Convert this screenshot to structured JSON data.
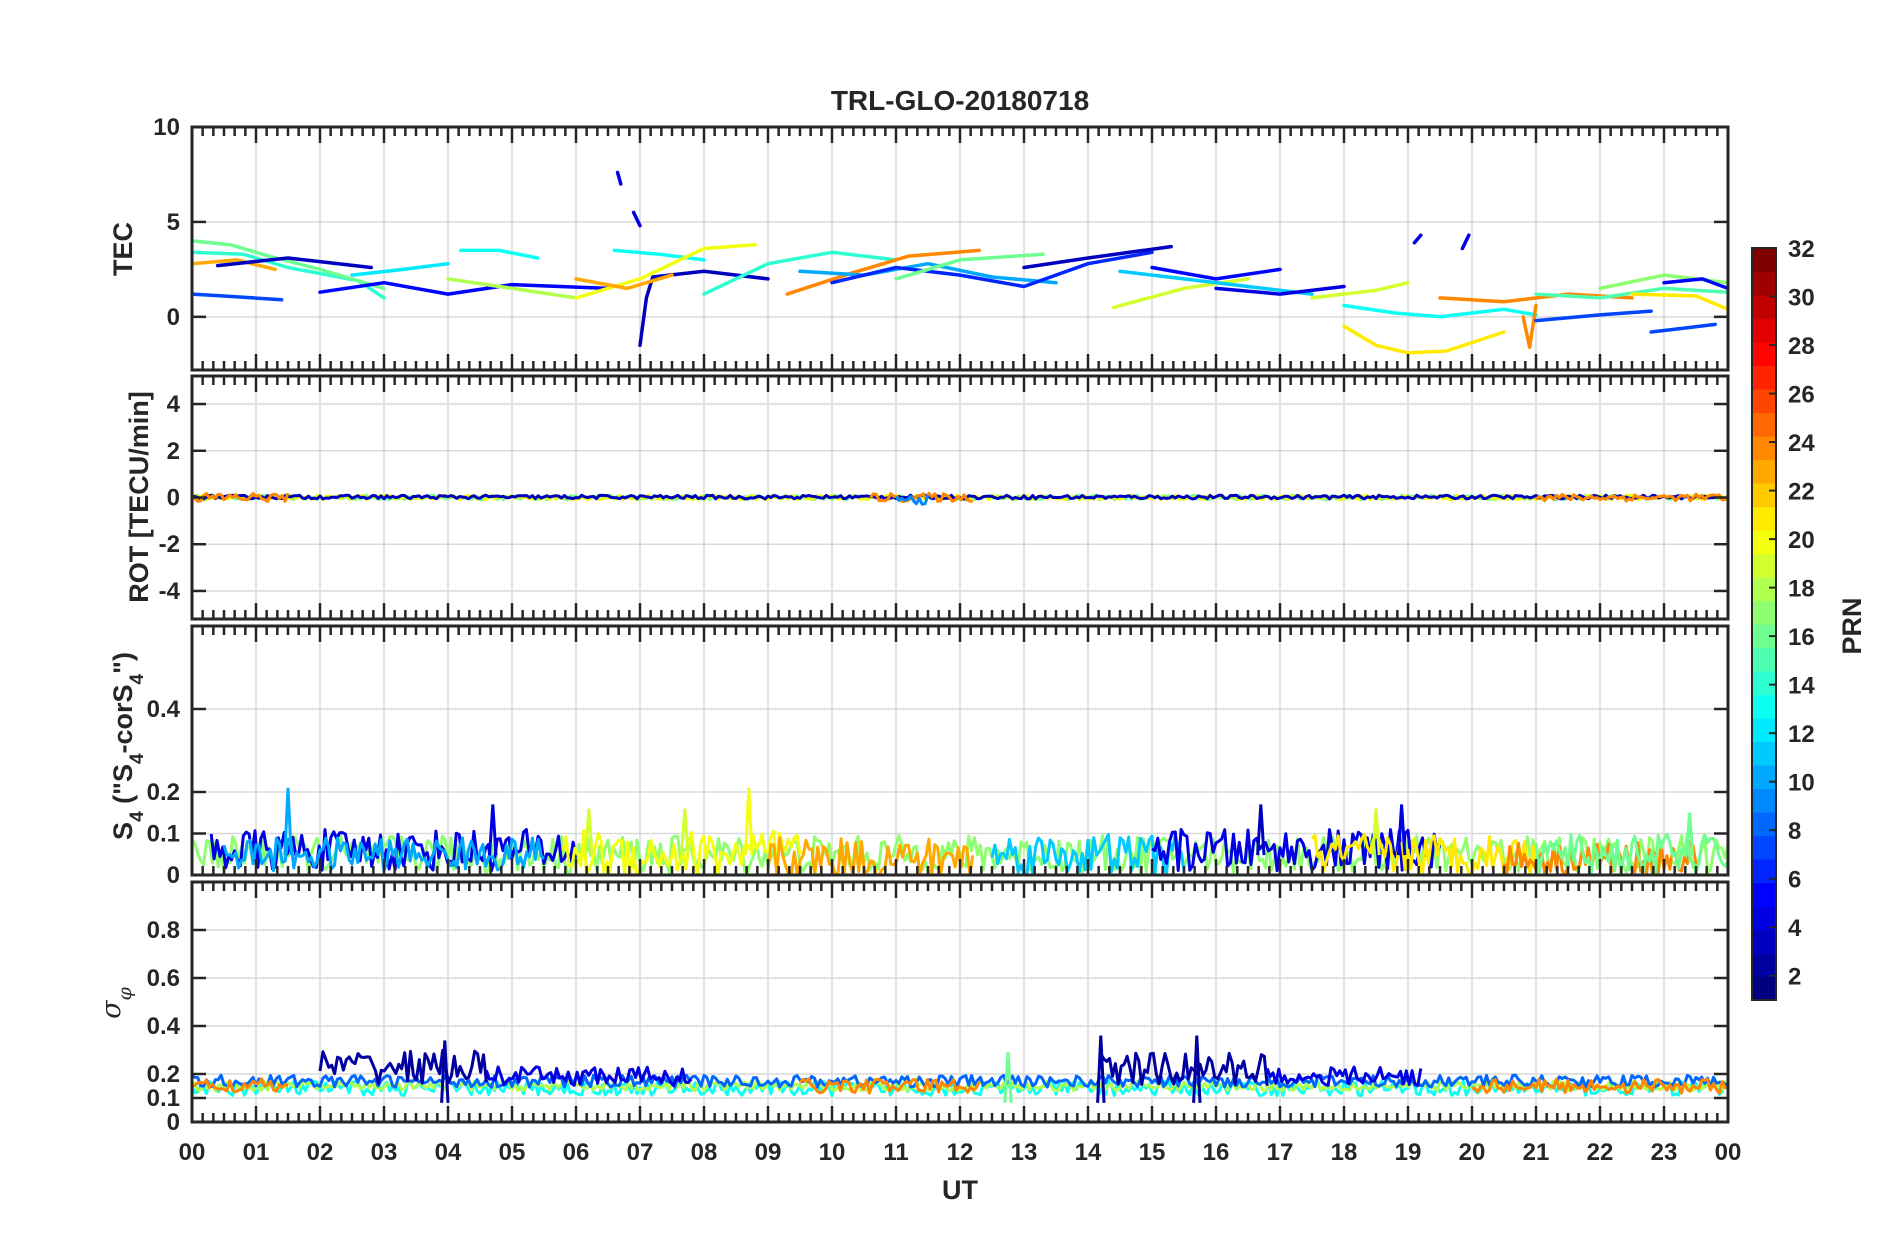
{
  "chart_data": {
    "type": "line",
    "title": "TRL-GLO-20180718",
    "xlabel": "UT",
    "x_tick_labels": [
      "00",
      "01",
      "02",
      "03",
      "04",
      "05",
      "06",
      "07",
      "08",
      "09",
      "10",
      "11",
      "12",
      "13",
      "14",
      "15",
      "16",
      "17",
      "18",
      "19",
      "20",
      "21",
      "22",
      "23",
      "00"
    ],
    "xlim": [
      0,
      24
    ],
    "grid": true,
    "colorbar": {
      "label": "PRN",
      "range": [
        1,
        32
      ],
      "tick_labels": [
        "2",
        "4",
        "6",
        "8",
        "10",
        "12",
        "14",
        "16",
        "18",
        "20",
        "22",
        "24",
        "26",
        "28",
        "30",
        "32"
      ],
      "colormap": "jet"
    },
    "panels": [
      {
        "name": "tec",
        "ylabel": "TEC",
        "ylim": [
          -2.8,
          10
        ],
        "y_ticks": [
          0,
          5,
          10
        ],
        "y_tick_labels": [
          "0",
          "5",
          "10"
        ],
        "series": [
          {
            "prn": 7,
            "x": [
              0.0,
              0.5,
              1.4
            ],
            "y": [
              1.2,
              1.1,
              0.9
            ]
          },
          {
            "prn": 14,
            "x": [
              0.0,
              0.8,
              1.5,
              2.6,
              3.0
            ],
            "y": [
              3.4,
              3.3,
              2.6,
              1.9,
              1.0
            ]
          },
          {
            "prn": 16,
            "x": [
              0.0,
              0.6,
              1.2,
              2.0,
              3.0
            ],
            "y": [
              4.0,
              3.8,
              3.2,
              2.5,
              1.5
            ]
          },
          {
            "prn": 23,
            "x": [
              0.0,
              0.7,
              1.3
            ],
            "y": [
              2.8,
              3.0,
              2.5
            ]
          },
          {
            "prn": 3,
            "x": [
              0.4,
              1.5,
              2.8
            ],
            "y": [
              2.7,
              3.1,
              2.6
            ]
          },
          {
            "prn": 5,
            "x": [
              2.0,
              3.0,
              4.0,
              5.0,
              6.5
            ],
            "y": [
              1.3,
              1.8,
              1.2,
              1.7,
              1.5
            ]
          },
          {
            "prn": 12,
            "x": [
              2.5,
              3.3,
              4.0
            ],
            "y": [
              2.2,
              2.5,
              2.8
            ]
          },
          {
            "prn": 13,
            "x": [
              4.2,
              4.8,
              5.4
            ],
            "y": [
              3.5,
              3.5,
              3.1
            ]
          },
          {
            "prn": 18,
            "x": [
              4.0,
              5.0,
              6.0
            ],
            "y": [
              2.0,
              1.5,
              1.0
            ]
          },
          {
            "prn": 4,
            "x": [
              6.65,
              6.7
            ],
            "y": [
              7.6,
              7.0
            ]
          },
          {
            "prn": 4,
            "x": [
              6.9,
              7.0
            ],
            "y": [
              5.5,
              4.8
            ]
          },
          {
            "prn": 3,
            "x": [
              7.0,
              7.1,
              7.2,
              8.0,
              9.0
            ],
            "y": [
              -1.5,
              1.0,
              2.1,
              2.4,
              2.0
            ]
          },
          {
            "prn": 13,
            "x": [
              6.6,
              7.3,
              8.0
            ],
            "y": [
              3.5,
              3.3,
              3.0
            ]
          },
          {
            "prn": 20,
            "x": [
              6.0,
              7.0,
              8.0,
              8.8
            ],
            "y": [
              1.0,
              2.0,
              3.6,
              3.8
            ]
          },
          {
            "prn": 23,
            "x": [
              6.0,
              6.8,
              7.5
            ],
            "y": [
              2.0,
              1.5,
              2.2
            ]
          },
          {
            "prn": 14,
            "x": [
              8.0,
              9.0,
              10.0,
              11.0
            ],
            "y": [
              1.2,
              2.8,
              3.4,
              3.0
            ]
          },
          {
            "prn": 24,
            "x": [
              9.3,
              10.3,
              11.2,
              12.3
            ],
            "y": [
              1.2,
              2.3,
              3.2,
              3.5
            ]
          },
          {
            "prn": 10,
            "x": [
              9.5,
              10.5,
              11.5,
              12.5,
              13.5
            ],
            "y": [
              2.4,
              2.2,
              2.8,
              2.1,
              1.8
            ]
          },
          {
            "prn": 6,
            "x": [
              10.0,
              11.0,
              12.0,
              13.0,
              14.0,
              15.0
            ],
            "y": [
              1.8,
              2.6,
              2.2,
              1.6,
              2.8,
              3.4
            ]
          },
          {
            "prn": 16,
            "x": [
              11.0,
              12.0,
              13.3
            ],
            "y": [
              2.0,
              3.0,
              3.3
            ]
          },
          {
            "prn": 3,
            "x": [
              13.0,
              14.0,
              15.3
            ],
            "y": [
              2.6,
              3.1,
              3.7
            ]
          },
          {
            "prn": 19,
            "x": [
              14.4,
              15.5,
              16.5
            ],
            "y": [
              0.5,
              1.5,
              2.0
            ]
          },
          {
            "prn": 11,
            "x": [
              14.5,
              15.5,
              16.5,
              17.5
            ],
            "y": [
              2.4,
              2.0,
              1.6,
              1.2
            ]
          },
          {
            "prn": 5,
            "x": [
              15.0,
              16.0,
              17.0
            ],
            "y": [
              2.6,
              2.0,
              2.5
            ]
          },
          {
            "prn": 4,
            "x": [
              16.0,
              17.0,
              18.0
            ],
            "y": [
              1.5,
              1.2,
              1.6
            ]
          },
          {
            "prn": 21,
            "x": [
              18.0,
              18.5,
              19.0,
              19.6,
              20.5
            ],
            "y": [
              -0.5,
              -1.5,
              -1.9,
              -1.8,
              -0.8
            ]
          },
          {
            "prn": 13,
            "x": [
              18.0,
              18.8,
              19.5,
              20.5,
              21.0
            ],
            "y": [
              0.6,
              0.2,
              0.0,
              0.4,
              0.1
            ]
          },
          {
            "prn": 19,
            "x": [
              17.5,
              18.5,
              19.0
            ],
            "y": [
              1.0,
              1.4,
              1.8
            ]
          },
          {
            "prn": 4,
            "x": [
              19.1,
              19.2
            ],
            "y": [
              3.9,
              4.3
            ]
          },
          {
            "prn": 4,
            "x": [
              19.85,
              19.95
            ],
            "y": [
              3.6,
              4.3
            ]
          },
          {
            "prn": 24,
            "x": [
              19.5,
              20.5,
              21.5,
              22.5
            ],
            "y": [
              1.0,
              0.8,
              1.2,
              1.0
            ]
          },
          {
            "prn": 24,
            "x": [
              20.8,
              20.9,
              21.0
            ],
            "y": [
              0.0,
              -1.6,
              0.6
            ]
          },
          {
            "prn": 15,
            "x": [
              21.0,
              22.0,
              23.0,
              24.0
            ],
            "y": [
              1.2,
              1.0,
              1.5,
              1.3
            ]
          },
          {
            "prn": 7,
            "x": [
              21.0,
              22.0,
              22.8
            ],
            "y": [
              -0.2,
              0.1,
              0.3
            ]
          },
          {
            "prn": 7,
            "x": [
              22.8,
              23.3,
              23.8
            ],
            "y": [
              -0.8,
              -0.6,
              -0.4
            ]
          },
          {
            "prn": 17,
            "x": [
              22.0,
              23.0,
              24.0
            ],
            "y": [
              1.5,
              2.2,
              1.8
            ]
          },
          {
            "prn": 5,
            "x": [
              23.0,
              23.6,
              24.0
            ],
            "y": [
              1.8,
              2.0,
              1.5
            ]
          },
          {
            "prn": 21,
            "x": [
              22.5,
              23.5,
              24.0
            ],
            "y": [
              1.2,
              1.1,
              0.4
            ]
          }
        ]
      },
      {
        "name": "rot",
        "ylabel": "ROT [TECU/min]",
        "ylim": [
          -5.2,
          5.2
        ],
        "y_ticks": [
          -4,
          -2,
          0,
          2,
          4
        ],
        "y_tick_labels": [
          "-4",
          "-2",
          "0",
          "2",
          "4"
        ],
        "noise_bands": [
          {
            "prn": 16,
            "x_range": [
              0,
              24
            ],
            "center": 0.0,
            "amplitude": 0.1
          },
          {
            "prn": 20,
            "x_range": [
              0,
              24
            ],
            "center": 0.0,
            "amplitude": 0.1
          },
          {
            "prn": 3,
            "x_range": [
              0,
              24
            ],
            "center": 0.02,
            "amplitude": 0.08
          },
          {
            "prn": 24,
            "x_range": [
              0,
              1.5
            ],
            "center": 0.0,
            "amplitude": 0.2
          },
          {
            "prn": 24,
            "x_range": [
              10.6,
              12.2
            ],
            "center": 0.0,
            "amplitude": 0.18
          },
          {
            "prn": 24,
            "x_range": [
              21.0,
              24.0
            ],
            "center": 0.0,
            "amplitude": 0.15
          },
          {
            "prn": 9,
            "x_range": [
              11.0,
              11.5
            ],
            "center": -0.1,
            "amplitude": 0.2
          }
        ]
      },
      {
        "name": "s4",
        "ylabel": "S4 (\"S4-corS4\")",
        "ylabel_parts": [
          "S",
          "4",
          " (\"S",
          "4",
          "-corS",
          "4",
          "\")"
        ],
        "ylim": [
          0,
          0.6
        ],
        "y_ticks": [
          0,
          0.1,
          0.2,
          0.4
        ],
        "y_tick_labels": [
          "0",
          "0.1",
          "0.2",
          "0.4"
        ],
        "noise_bands": [
          {
            "prn": 17,
            "x_range": [
              0,
              24
            ],
            "center": 0.05,
            "amplitude": 0.045
          },
          {
            "prn": 4,
            "x_range": [
              0.3,
              6.0
            ],
            "center": 0.06,
            "amplitude": 0.05
          },
          {
            "prn": 10,
            "x_range": [
              0.5,
              5.5
            ],
            "center": 0.05,
            "amplitude": 0.04
          },
          {
            "prn": 20,
            "x_range": [
              5.8,
              9.5
            ],
            "center": 0.05,
            "amplitude": 0.06
          },
          {
            "prn": 23,
            "x_range": [
              9.0,
              12.2
            ],
            "center": 0.04,
            "amplitude": 0.05
          },
          {
            "prn": 11,
            "x_range": [
              12.5,
              15.5
            ],
            "center": 0.05,
            "amplitude": 0.05
          },
          {
            "prn": 4,
            "x_range": [
              15.0,
              19.5
            ],
            "center": 0.06,
            "amplitude": 0.05
          },
          {
            "prn": 21,
            "x_range": [
              17.5,
              21.0
            ],
            "center": 0.05,
            "amplitude": 0.05
          },
          {
            "prn": 24,
            "x_range": [
              20.5,
              23.5
            ],
            "center": 0.04,
            "amplitude": 0.04
          },
          {
            "prn": 16,
            "x_range": [
              21.0,
              24.0
            ],
            "center": 0.05,
            "amplitude": 0.05
          }
        ],
        "peaks": [
          {
            "prn": 10,
            "x": 1.5,
            "y": 0.21
          },
          {
            "prn": 4,
            "x": 4.7,
            "y": 0.17
          },
          {
            "prn": 19,
            "x": 6.2,
            "y": 0.16
          },
          {
            "prn": 20,
            "x": 8.7,
            "y": 0.21
          },
          {
            "prn": 19,
            "x": 7.7,
            "y": 0.16
          },
          {
            "prn": 3,
            "x": 16.7,
            "y": 0.17
          },
          {
            "prn": 4,
            "x": 18.9,
            "y": 0.17
          },
          {
            "prn": 19,
            "x": 18.5,
            "y": 0.16
          },
          {
            "prn": 16,
            "x": 23.4,
            "y": 0.15
          }
        ]
      },
      {
        "name": "sigma_phi",
        "ylabel": "σφ",
        "ylabel_parts": [
          "σ",
          "φ"
        ],
        "ylim": [
          0,
          1.0
        ],
        "y_ticks": [
          0,
          0.1,
          0.2,
          0.4,
          0.6,
          0.8
        ],
        "y_tick_labels": [
          "0",
          "0.1",
          "0.2",
          "0.4",
          "0.6",
          "0.8"
        ],
        "noise_bands": [
          {
            "prn": 13,
            "x_range": [
              0,
              24
            ],
            "center": 0.14,
            "amplitude": 0.03
          },
          {
            "prn": 18,
            "x_range": [
              0,
              24
            ],
            "center": 0.15,
            "amplitude": 0.02
          },
          {
            "prn": 8,
            "x_range": [
              0,
              24
            ],
            "center": 0.17,
            "amplitude": 0.025
          },
          {
            "prn": 24,
            "x_range": [
              0,
              1.5
            ],
            "center": 0.15,
            "amplitude": 0.03
          },
          {
            "prn": 24,
            "x_range": [
              9.5,
              12.3
            ],
            "center": 0.15,
            "amplitude": 0.03
          },
          {
            "prn": 24,
            "x_range": [
              20.0,
              24.0
            ],
            "center": 0.15,
            "amplitude": 0.03
          },
          {
            "prn": 2,
            "x_range": [
              2.0,
              4.6
            ],
            "center": 0.23,
            "amplitude": 0.07
          },
          {
            "prn": 4,
            "x_range": [
              4.6,
              7.8
            ],
            "center": 0.19,
            "amplitude": 0.04
          },
          {
            "prn": 2,
            "x_range": [
              14.2,
              16.8
            ],
            "center": 0.22,
            "amplitude": 0.07
          },
          {
            "prn": 4,
            "x_range": [
              16.8,
              19.2
            ],
            "center": 0.19,
            "amplitude": 0.04
          }
        ],
        "peaks": [
          {
            "prn": 16,
            "x": 12.75,
            "y": 0.29
          },
          {
            "prn": 2,
            "x": 14.2,
            "y": 0.36
          },
          {
            "prn": 2,
            "x": 15.7,
            "y": 0.36
          },
          {
            "prn": 2,
            "x": 3.95,
            "y": 0.34
          }
        ]
      }
    ]
  }
}
